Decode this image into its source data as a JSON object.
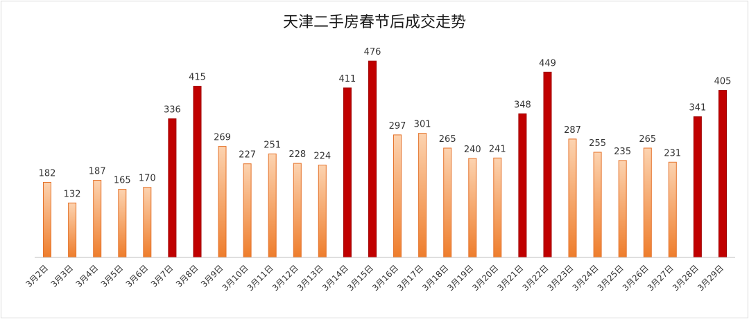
{
  "chart_data": {
    "type": "bar",
    "title": "天津二手房春节后成交走势",
    "categories": [
      "3月2日",
      "3月3日",
      "3月4日",
      "3月5日",
      "3月6日",
      "3月7日",
      "3月8日",
      "3月9日",
      "3月10日",
      "3月11日",
      "3月12日",
      "3月13日",
      "3月14日",
      "3月15日",
      "3月16日",
      "3月17日",
      "3月18日",
      "3月19日",
      "3月20日",
      "3月21日",
      "3月22日",
      "3月23日",
      "3月24日",
      "3月25日",
      "3月26日",
      "3月27日",
      "3月28日",
      "3月29日"
    ],
    "values": [
      182,
      132,
      187,
      165,
      170,
      336,
      415,
      269,
      227,
      251,
      228,
      224,
      411,
      476,
      297,
      301,
      265,
      240,
      241,
      348,
      449,
      287,
      255,
      235,
      265,
      231,
      341,
      405
    ],
    "highlighted": [
      false,
      false,
      false,
      false,
      false,
      true,
      true,
      false,
      false,
      false,
      false,
      false,
      true,
      true,
      false,
      false,
      false,
      false,
      false,
      true,
      true,
      false,
      false,
      false,
      false,
      false,
      true,
      true
    ],
    "ylim": [
      0,
      520
    ],
    "xlabel": "",
    "ylabel": "",
    "grid": false,
    "colors": {
      "normal_light": "#fcd3b0",
      "normal_dark": "#ee7d2c",
      "normal_edge": "#e4722a",
      "highlight": "#c00000",
      "highlight_edge": "#a00000"
    }
  }
}
